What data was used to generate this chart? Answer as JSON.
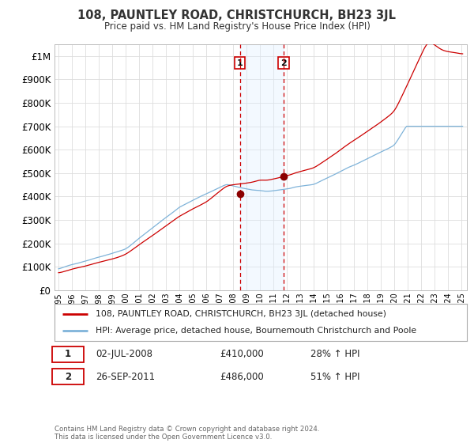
{
  "title": "108, PAUNTLEY ROAD, CHRISTCHURCH, BH23 3JL",
  "subtitle": "Price paid vs. HM Land Registry's House Price Index (HPI)",
  "background_color": "#ffffff",
  "plot_bg_color": "#ffffff",
  "grid_color": "#dddddd",
  "ylim": [
    0,
    1050000
  ],
  "yticks": [
    0,
    100000,
    200000,
    300000,
    400000,
    500000,
    600000,
    700000,
    800000,
    900000,
    1000000
  ],
  "ytick_labels": [
    "£0",
    "£100K",
    "£200K",
    "£300K",
    "£400K",
    "£500K",
    "£600K",
    "£700K",
    "£800K",
    "£900K",
    "£1M"
  ],
  "sale1_date": 2008.5,
  "sale1_price": 410000,
  "sale1_label": "1",
  "sale2_date": 2011.75,
  "sale2_price": 486000,
  "sale2_label": "2",
  "sale_color": "#cc0000",
  "hpi_color": "#7fb3d9",
  "annotation_box_color": "#cc0000",
  "shaded_region_color": "#ddeeff",
  "legend_sale_label": "108, PAUNTLEY ROAD, CHRISTCHURCH, BH23 3JL (detached house)",
  "legend_hpi_label": "HPI: Average price, detached house, Bournemouth Christchurch and Poole",
  "note1_label": "1",
  "note1_date": "02-JUL-2008",
  "note1_price": "£410,000",
  "note1_hpi": "28% ↑ HPI",
  "note2_label": "2",
  "note2_date": "26-SEP-2011",
  "note2_price": "£486,000",
  "note2_hpi": "51% ↑ HPI",
  "footer": "Contains HM Land Registry data © Crown copyright and database right 2024.\nThis data is licensed under the Open Government Licence v3.0."
}
